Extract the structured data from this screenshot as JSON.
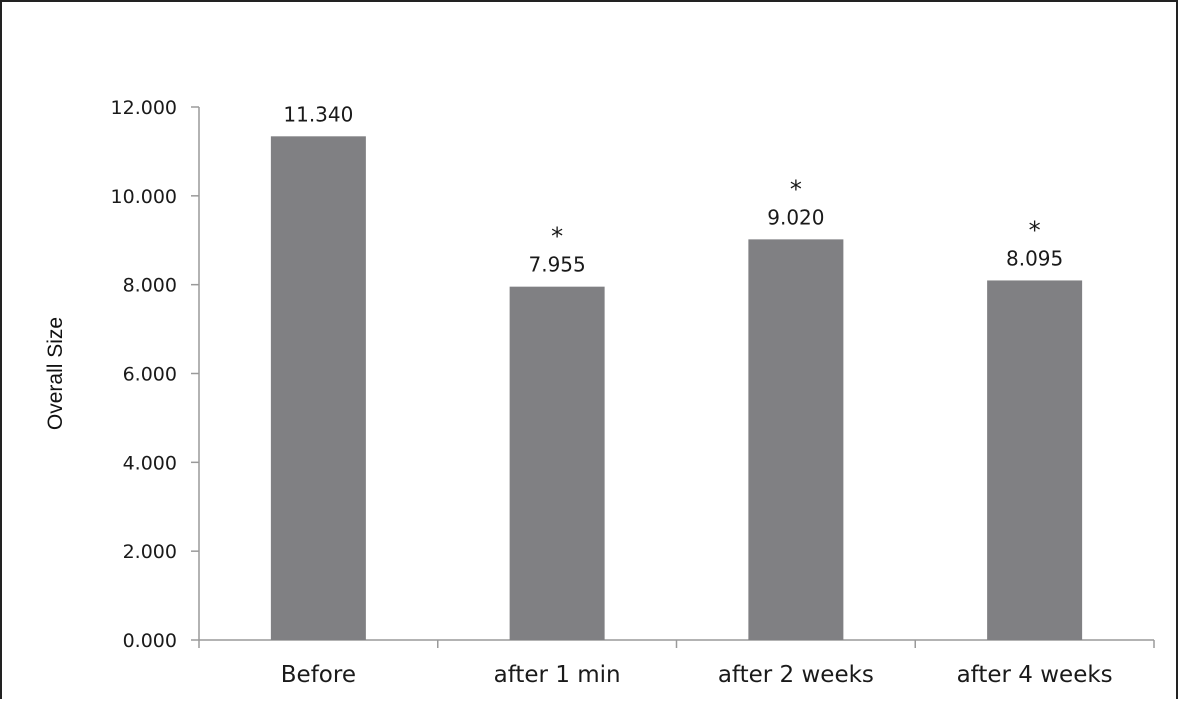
{
  "chart_data": {
    "type": "bar",
    "title": "",
    "xlabel": "",
    "ylabel": "Overall Size",
    "categories": [
      "Before",
      "after 1 min",
      "after 2 weeks",
      "after 4 weeks"
    ],
    "values": [
      11.34,
      7.955,
      9.02,
      8.095
    ],
    "data_labels": [
      "11.340",
      "7.955",
      "9.020",
      "8.095"
    ],
    "significance_markers": [
      "",
      "*",
      "*",
      "*"
    ],
    "y_ticks": [
      "0.000",
      "2.000",
      "4.000",
      "6.000",
      "8.000",
      "10.000",
      "12.000"
    ],
    "ylim": [
      0,
      12
    ],
    "grid": false,
    "legend": "none",
    "bar_color": "#808083",
    "axis_color": "#9a9a9a"
  }
}
